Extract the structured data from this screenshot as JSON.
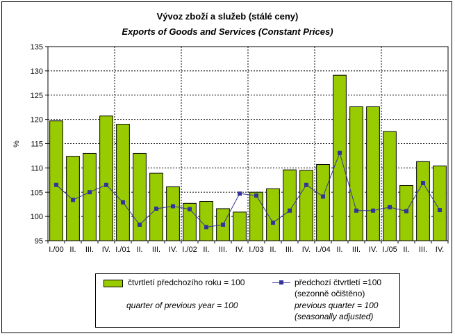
{
  "title": "Vývoz zboží a služeb (stálé ceny)",
  "subtitle": "Exports of Goods and Services (Constant Prices)",
  "chart_data": {
    "type": "bar",
    "ylabel": "%",
    "ylim": [
      95,
      135
    ],
    "yticks": [
      95,
      100,
      105,
      110,
      115,
      120,
      125,
      130,
      135
    ],
    "categories": [
      "I./00",
      "II.",
      "III.",
      "IV.",
      "I./01",
      "II.",
      "III.",
      "IV.",
      "I./02",
      "II.",
      "III.",
      "IV.",
      "I./03",
      "II.",
      "III.",
      "IV.",
      "I./04",
      "II.",
      "III.",
      "IV.",
      "I./05",
      "II.",
      "III.",
      "IV."
    ],
    "series": [
      {
        "name": "čtvrtletí předchozího roku = 100 / quarter of previous year = 100",
        "kind": "bar",
        "color": "#99cc00",
        "values": [
          119.7,
          112.4,
          113.0,
          120.7,
          119.0,
          113.0,
          108.9,
          106.1,
          102.7,
          103.1,
          101.6,
          100.9,
          105.0,
          105.7,
          109.6,
          109.5,
          110.7,
          129.1,
          122.6,
          122.6,
          117.5,
          106.4,
          111.3,
          110.4
        ]
      },
      {
        "name": "předchozí čtvrtletí =100 (sezonně očištěno) / previous quarter = 100 (seasonally adjusted)",
        "kind": "line",
        "color": "#333399",
        "values": [
          106.5,
          103.4,
          105.0,
          106.5,
          102.9,
          98.3,
          101.6,
          102.1,
          101.5,
          97.8,
          98.3,
          104.7,
          104.3,
          98.7,
          101.2,
          106.5,
          104.1,
          113.1,
          101.2,
          101.2,
          101.9,
          101.1,
          106.9,
          101.3
        ]
      }
    ],
    "gridlines": "dotted",
    "year_separators": "dotted"
  },
  "legend": {
    "bar_cz": "čtvrtletí předchozího roku = 100",
    "bar_en": "quarter of previous year = 100",
    "line_cz_1": "předchozí čtvrtletí =100",
    "line_cz_2": "(sezonně očištěno)",
    "line_en_1": "previous quarter = 100",
    "line_en_2": "(seasonally adjusted)"
  }
}
